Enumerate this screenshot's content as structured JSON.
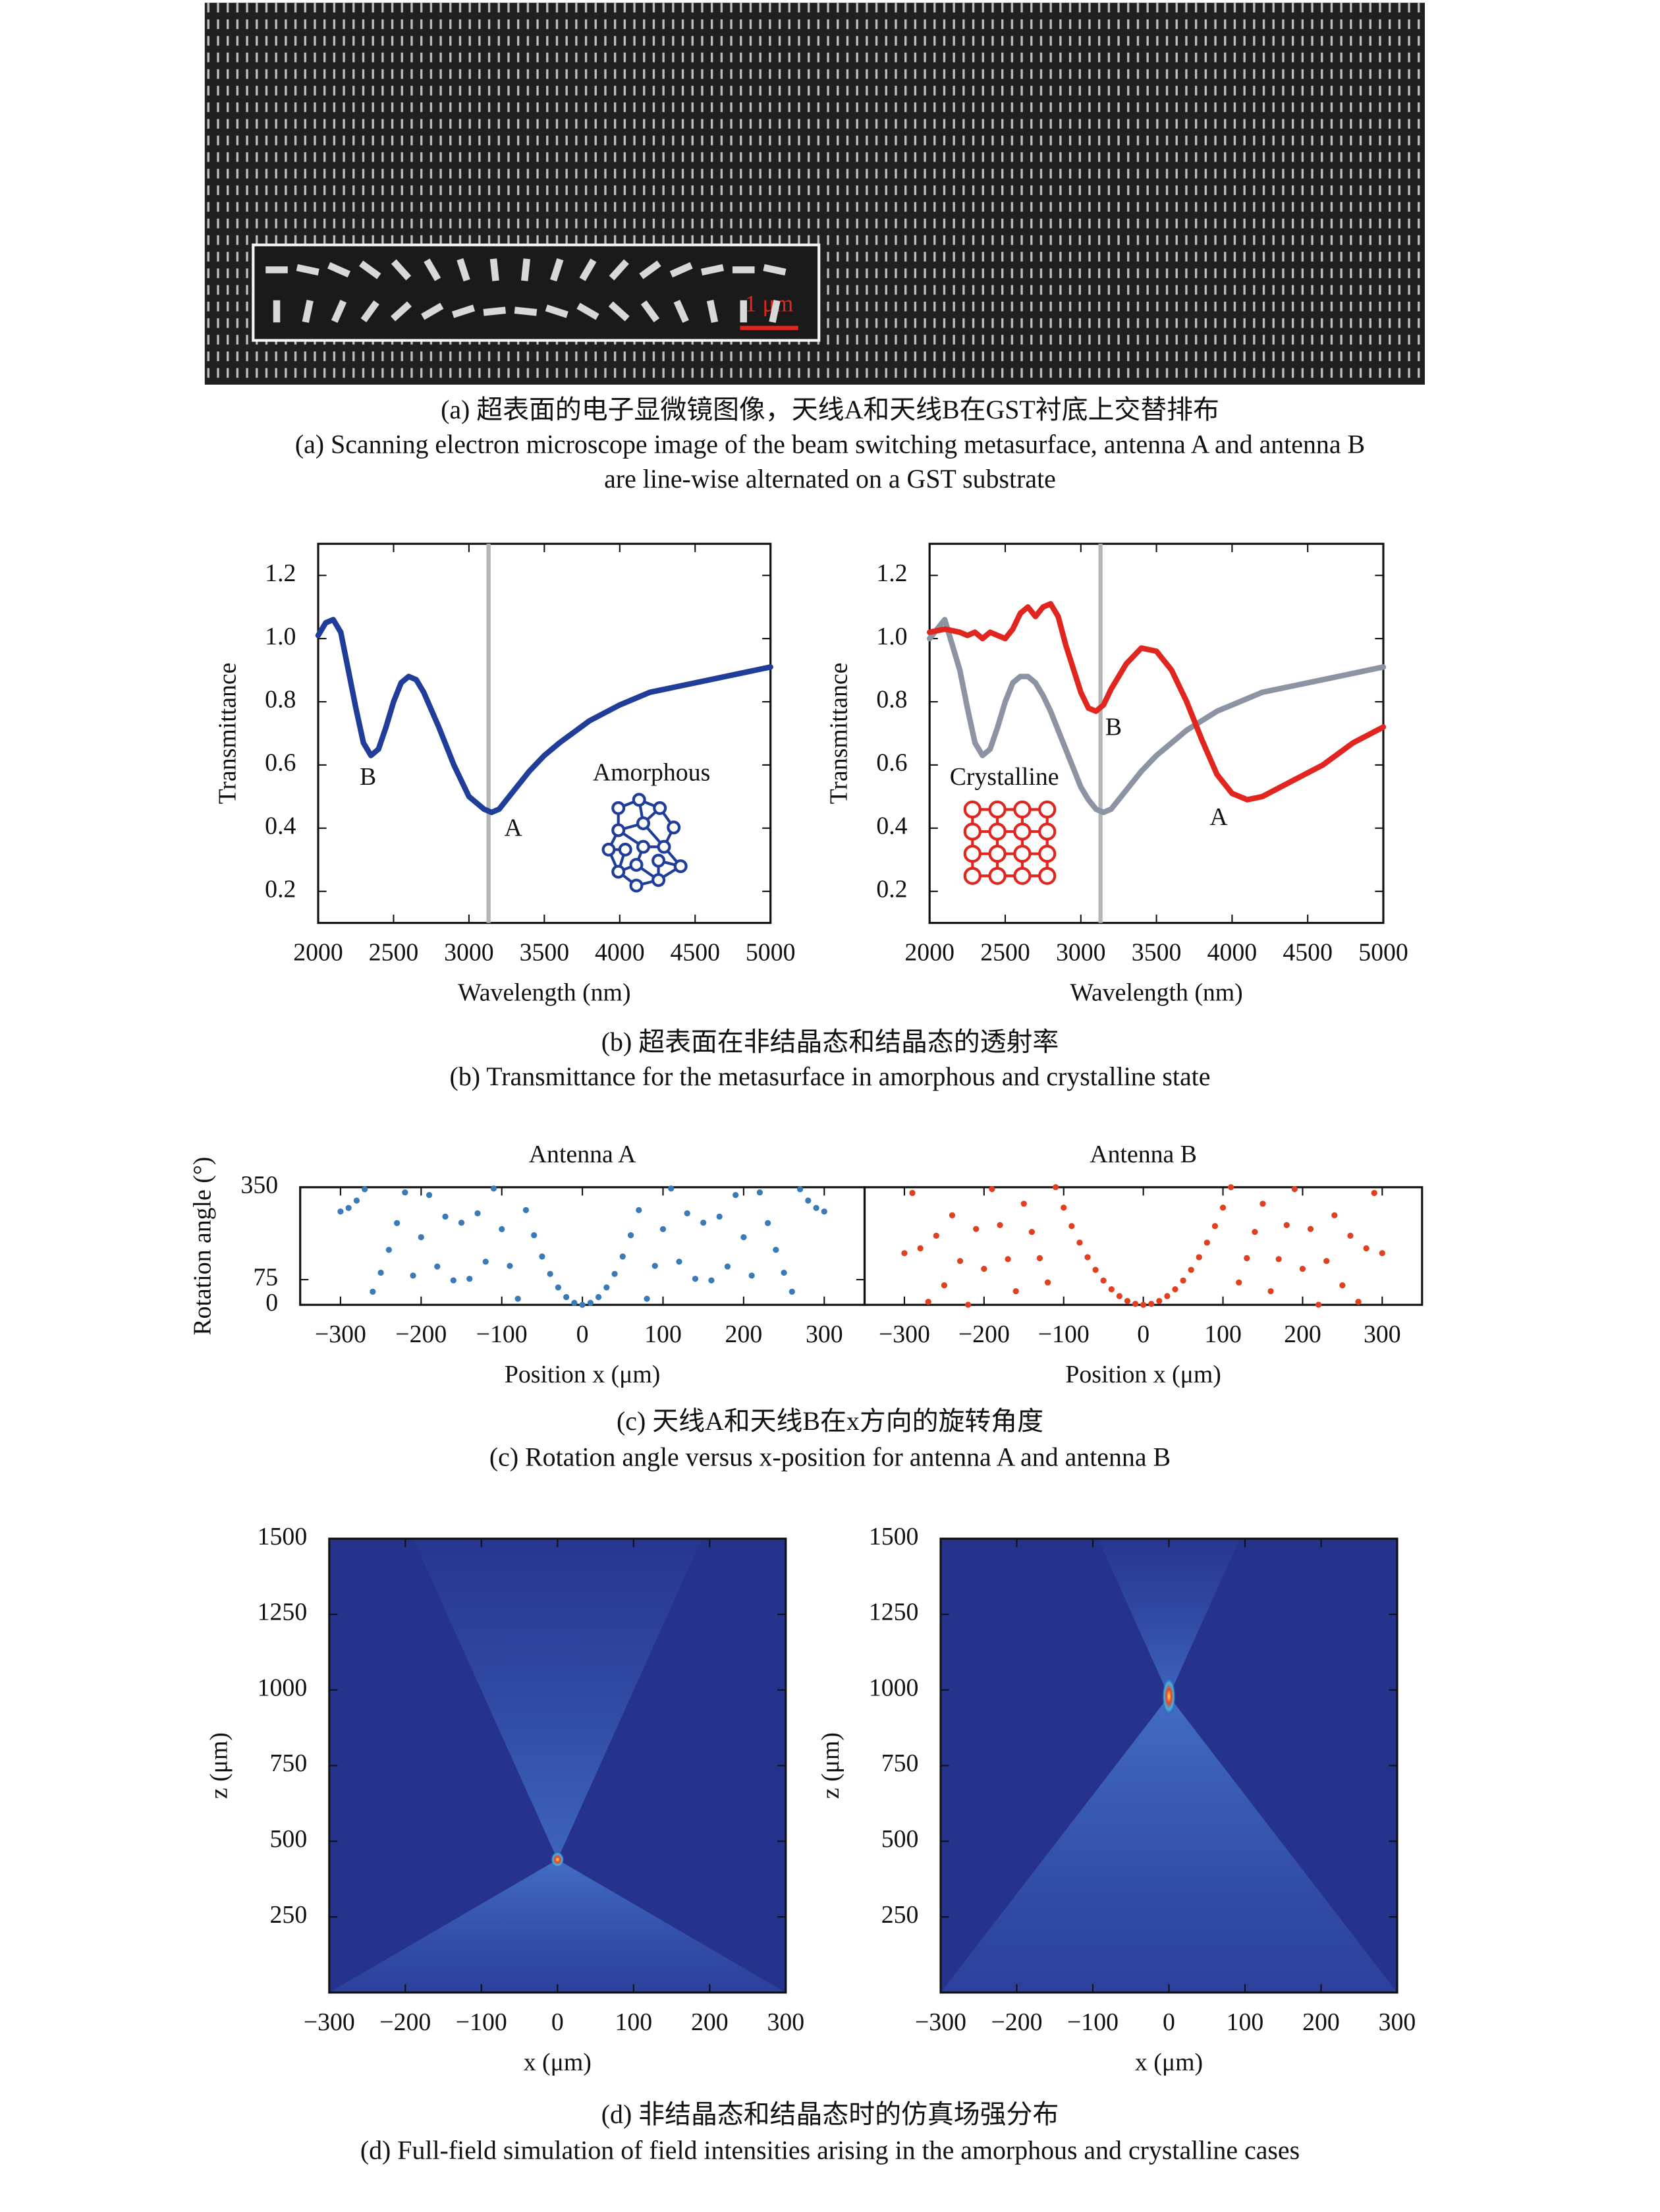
{
  "panel_a": {
    "scale_bar": "1 μm"
  },
  "captions": {
    "a": {
      "zh": "(a) 超表面的电子显微镜图像，天线A和天线B在GST衬底上交替排布",
      "en": [
        "(a) Scanning electron microscope image of the beam switching metasurface, antenna A and antenna B",
        "are line-wise alternated on a GST substrate"
      ]
    },
    "b": {
      "zh": "(b) 超表面在非结晶态和结晶态的透射率",
      "en": "(b) Transmittance for the metasurface in amorphous and crystalline state"
    },
    "c": {
      "zh": "(c) 天线A和天线B在x方向的旋转角度",
      "en": "(c) Rotation angle versus x-position for antenna A and antenna B"
    },
    "d": {
      "zh": "(d) 非结晶态和结晶态时的仿真场强分布",
      "en": "(d) Full-field simulation of field intensities arising in the amorphous and crystalline cases"
    }
  },
  "chart_data": [
    {
      "type": "line",
      "xlabel": "Wavelength (nm)",
      "ylabel": "Transmittance",
      "annotations": [
        "B",
        "A",
        "Amorphous"
      ],
      "x": [
        2000,
        2050,
        2100,
        2150,
        2200,
        2250,
        2300,
        2350,
        2400,
        2450,
        2500,
        2550,
        2600,
        2650,
        2700,
        2800,
        2900,
        3000,
        3100,
        3150,
        3200,
        3300,
        3400,
        3500,
        3600,
        3800,
        4000,
        4200,
        4400,
        4600,
        4800,
        5000
      ],
      "series": [
        {
          "color": "#1f3d99",
          "values": [
            1.01,
            1.05,
            1.06,
            1.02,
            0.9,
            0.78,
            0.67,
            0.63,
            0.65,
            0.72,
            0.8,
            0.86,
            0.88,
            0.87,
            0.83,
            0.72,
            0.6,
            0.5,
            0.46,
            0.45,
            0.46,
            0.52,
            0.58,
            0.63,
            0.67,
            0.74,
            0.79,
            0.83,
            0.85,
            0.87,
            0.89,
            0.91
          ]
        }
      ],
      "vline": 3130,
      "xlim": [
        2000,
        5000
      ],
      "xticks": [
        2000,
        2500,
        3000,
        3500,
        4000,
        4500,
        5000
      ],
      "ylim": [
        0.1,
        1.3
      ],
      "yticks": [
        0.2,
        0.4,
        0.6,
        0.8,
        {
          "value": 1,
          "label": "1.0"
        },
        1.2
      ]
    },
    {
      "type": "line",
      "xlabel": "Wavelength (nm)",
      "ylabel": "Transmittance",
      "annotations": [
        "Crystalline",
        "B",
        "A"
      ],
      "x": [
        2000,
        2100,
        2200,
        2250,
        2300,
        2350,
        2400,
        2450,
        2500,
        2550,
        2600,
        2650,
        2700,
        2750,
        2800,
        2850,
        2900,
        3000,
        3050,
        3100,
        3150,
        3200,
        3300,
        3400,
        3500,
        3600,
        3700,
        3800,
        3900,
        4000,
        4100,
        4200,
        4400,
        4600,
        4800,
        5000
      ],
      "series": [
        {
          "color": "#8c93a3",
          "values": [
            1.0,
            1.06,
            0.9,
            0.78,
            0.67,
            0.63,
            0.65,
            0.72,
            0.8,
            0.86,
            0.88,
            0.88,
            0.86,
            0.82,
            0.77,
            0.71,
            0.65,
            0.53,
            0.49,
            0.46,
            0.45,
            0.46,
            0.52,
            0.58,
            0.63,
            0.67,
            0.71,
            0.74,
            0.77,
            0.79,
            0.81,
            0.83,
            0.85,
            0.87,
            0.89,
            0.91
          ]
        },
        {
          "color": "#e0261f",
          "values": [
            1.02,
            1.03,
            1.02,
            1.01,
            1.02,
            1.0,
            1.02,
            1.01,
            1.0,
            1.03,
            1.08,
            1.1,
            1.07,
            1.1,
            1.11,
            1.07,
            0.98,
            0.83,
            0.78,
            0.77,
            0.79,
            0.84,
            0.92,
            0.97,
            0.96,
            0.9,
            0.8,
            0.68,
            0.57,
            0.51,
            0.49,
            0.5,
            0.55,
            0.6,
            0.67,
            0.72
          ]
        }
      ],
      "vline": 3130,
      "xlim": [
        2000,
        5000
      ],
      "xticks": [
        2000,
        2500,
        3000,
        3500,
        4000,
        4500,
        5000
      ],
      "ylim": [
        0.1,
        1.3
      ],
      "yticks": [
        0.2,
        0.4,
        0.6,
        0.8,
        {
          "value": 1,
          "label": "1.0"
        },
        1.2
      ]
    },
    {
      "type": "scatter",
      "title": "Antenna A",
      "xlabel": "Position x (μm)",
      "ylabel": "Rotation angle (°)",
      "color": "#3a7ab8",
      "x": [
        -300,
        -290,
        -280,
        -270,
        -260,
        -250,
        -240,
        -230,
        -220,
        -210,
        -200,
        -190,
        -180,
        -170,
        -160,
        -150,
        -140,
        -130,
        -120,
        -110,
        -100,
        -90,
        -80,
        -70,
        -60,
        -50,
        -40,
        -30,
        -20,
        -10,
        0,
        10,
        20,
        30,
        40,
        50,
        60,
        70,
        80,
        90,
        100,
        110,
        120,
        130,
        140,
        150,
        160,
        170,
        180,
        190,
        200,
        210,
        220,
        230,
        240,
        250,
        260,
        270,
        280,
        290,
        300
      ],
      "values": [
        277.7,
        288.3,
        310.4,
        344,
        39.1,
        95.6,
        163.7,
        243.3,
        334.5,
        87.1,
        201.2,
        326.8,
        114,
        262.6,
        72.8,
        244.4,
        77.6,
        272.3,
        128.4,
        346.1,
        225.3,
        116,
        18.2,
        281.9,
        207.1,
        143.8,
        92,
        51.8,
        23,
        5.8,
        0,
        5.8,
        23,
        51.8,
        92,
        143.8,
        207.1,
        281.9,
        18.2,
        116,
        225.3,
        346.1,
        128.4,
        272.3,
        77.6,
        244.4,
        72.8,
        262.6,
        114,
        326.8,
        201.2,
        87.1,
        334.5,
        243.3,
        163.7,
        95.6,
        39.1,
        344,
        310.4,
        288.3,
        277.7
      ],
      "xlim": [
        -350,
        350
      ],
      "xticks": [
        {
          "value": -300,
          "label": "−300"
        },
        {
          "value": -200,
          "label": "−200"
        },
        {
          "value": -100,
          "label": "−100"
        },
        0,
        100,
        200,
        300
      ],
      "ylim": [
        0,
        350
      ],
      "yticks": [
        0,
        75,
        350
      ]
    },
    {
      "type": "scatter",
      "title": "Antenna B",
      "xlabel": "Position x (μm)",
      "color": "#e0401f",
      "x": [
        -300,
        -290,
        -280,
        -270,
        -260,
        -250,
        -240,
        -230,
        -220,
        -210,
        -200,
        -190,
        -180,
        -170,
        -160,
        -150,
        -140,
        -130,
        -120,
        -110,
        -100,
        -90,
        -80,
        -70,
        -60,
        -50,
        -40,
        -30,
        -20,
        -10,
        0,
        10,
        20,
        30,
        40,
        50,
        60,
        70,
        80,
        90,
        100,
        110,
        120,
        130,
        140,
        150,
        160,
        170,
        180,
        190,
        200,
        210,
        220,
        230,
        240,
        250,
        260,
        270,
        280,
        290,
        300
      ],
      "values": [
        153.7,
        333,
        168.1,
        9,
        205.7,
        58.1,
        266.4,
        130.4,
        0.2,
        225.8,
        107.2,
        344.4,
        237.3,
        136.1,
        40.6,
        300.9,
        217,
        138.9,
        66.6,
        350,
        289.3,
        234.3,
        185.2,
        141.8,
        104.1,
        72.3,
        46.3,
        26,
        11.6,
        2.9,
        0,
        2.9,
        11.6,
        26,
        46.3,
        72.3,
        104.1,
        141.8,
        185.2,
        234.3,
        289.3,
        350,
        66.6,
        138.9,
        217,
        300.9,
        40.6,
        136.1,
        237.3,
        344.4,
        107.2,
        225.8,
        0.2,
        130.4,
        266.4,
        58.1,
        205.7,
        9,
        168.1,
        333,
        153.7
      ],
      "xlim": [
        -350,
        350
      ],
      "xticks": [
        {
          "value": -300,
          "label": "−300"
        },
        {
          "value": -200,
          "label": "−200"
        },
        {
          "value": -100,
          "label": "−100"
        },
        0,
        100,
        200,
        300
      ],
      "ylim": [
        0,
        350
      ]
    },
    {
      "type": "heatmap",
      "xlabel": "x (μm)",
      "ylabel": "z (μm)",
      "xlim": [
        -300,
        300
      ],
      "xticks": [
        {
          "value": -300,
          "label": "−300"
        },
        {
          "value": -200,
          "label": "−200"
        },
        {
          "value": -100,
          "label": "−100"
        },
        0,
        100,
        200,
        300
      ],
      "ylim": [
        0,
        1500
      ],
      "yticks": [
        250,
        500,
        750,
        1000,
        1250,
        1500
      ]
    },
    {
      "type": "heatmap",
      "xlabel": "x (μm)",
      "ylabel": "z (μm)",
      "xlim": [
        -300,
        300
      ],
      "xticks": [
        {
          "value": -300,
          "label": "−300"
        },
        {
          "value": -200,
          "label": "−200"
        },
        {
          "value": -100,
          "label": "−100"
        },
        0,
        100,
        200,
        300
      ],
      "ylim": [
        0,
        1500
      ],
      "yticks": [
        250,
        500,
        750,
        1000,
        1250,
        1500
      ]
    }
  ]
}
